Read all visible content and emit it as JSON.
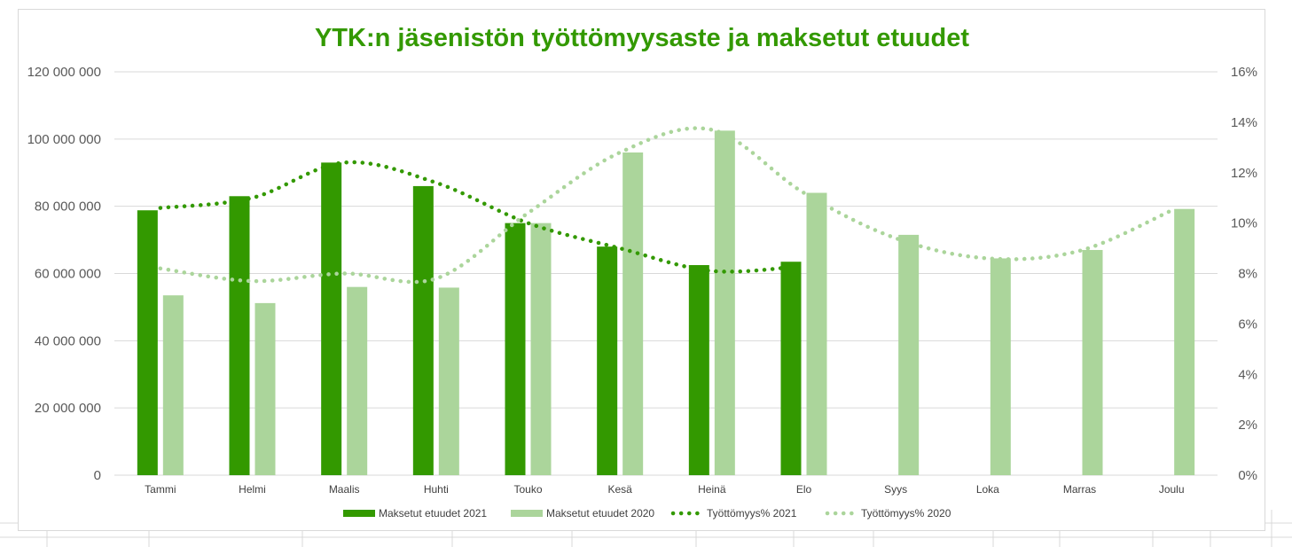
{
  "colors": {
    "bar2021": "#339900",
    "bar2020": "#abd59b",
    "line2021": "#339900",
    "line2020": "#abd59b",
    "title": "#339900",
    "grid": "#d9d9d9"
  },
  "chart_data": {
    "type": "bar",
    "title": "YTK:n jäsenistön työttömyysaste ja maksetut etuudet",
    "categories": [
      "Tammi",
      "Helmi",
      "Maalis",
      "Huhti",
      "Touko",
      "Kesä",
      "Heinä",
      "Elo",
      "Syys",
      "Loka",
      "Marras",
      "Joulu"
    ],
    "y_left": {
      "range": [
        0,
        120000000
      ],
      "ticks": [
        0,
        20000000,
        40000000,
        60000000,
        80000000,
        100000000,
        120000000
      ],
      "tick_labels": [
        "0",
        "20 000 000",
        "40 000 000",
        "60 000 000",
        "80 000 000",
        "100 000 000",
        "120 000 000"
      ]
    },
    "y_right": {
      "range": [
        0,
        16
      ],
      "ticks": [
        0,
        2,
        4,
        6,
        8,
        10,
        12,
        14,
        16
      ],
      "tick_labels": [
        "0%",
        "2%",
        "4%",
        "6%",
        "8%",
        "10%",
        "12%",
        "14%",
        "16%"
      ]
    },
    "grid": true,
    "legend_position": "bottom",
    "series": [
      {
        "name": "Maksetut etuudet 2021",
        "kind": "bar",
        "axis": "left",
        "values": [
          78800000,
          83000000,
          93000000,
          86000000,
          75000000,
          68000000,
          62500000,
          63500000,
          null,
          null,
          null,
          null
        ]
      },
      {
        "name": "Maksetut etuudet 2020",
        "kind": "bar",
        "axis": "left",
        "values": [
          53500000,
          51200000,
          56000000,
          55800000,
          75000000,
          96000000,
          102500000,
          84000000,
          71500000,
          64500000,
          67000000,
          79200000
        ]
      },
      {
        "name": "Työttömyys% 2021",
        "kind": "line",
        "style": "dotted",
        "axis": "right",
        "values": [
          10.6,
          11.0,
          12.4,
          11.6,
          10.0,
          9.0,
          8.1,
          8.3,
          null,
          null,
          null,
          null
        ]
      },
      {
        "name": "Työttömyys% 2020",
        "kind": "line",
        "style": "dotted",
        "axis": "right",
        "values": [
          8.2,
          7.7,
          8.0,
          7.8,
          10.4,
          12.8,
          13.7,
          11.2,
          9.4,
          8.6,
          8.9,
          10.5
        ]
      }
    ]
  }
}
